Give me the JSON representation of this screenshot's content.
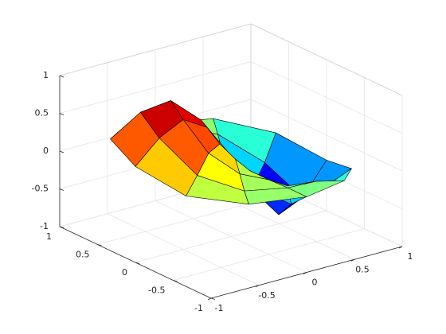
{
  "chart_data": {
    "type": "surface",
    "r": [
      0,
      0.25,
      0.5,
      0.75,
      1
    ],
    "theta": [
      0,
      30,
      60,
      90,
      120,
      150,
      180,
      210,
      240,
      270,
      300,
      330
    ],
    "z": [
      [
        0.07
      ],
      [
        -0.5,
        -0.37,
        -0.11,
        0.16,
        0.41,
        0.56,
        0.53,
        0.36,
        0.17,
        -0.01,
        -0.2,
        -0.41
      ],
      [
        -0.88,
        -0.59,
        -0.15,
        0.16,
        0.52,
        0.83,
        0.72,
        0.37,
        0.12,
        -0.01,
        -0.21,
        -0.6
      ],
      [
        -0.74,
        -0.42,
        -0.08,
        0.08,
        0.35,
        0.69,
        0.56,
        0.21,
        0.04,
        0,
        -0.09,
        -0.42
      ],
      [
        -0.33,
        -0.16,
        -0.02,
        0.02,
        0.14,
        0.35,
        0.27,
        0.07,
        0.01,
        0,
        -0.02,
        -0.16
      ]
    ],
    "xlim": [
      -1,
      1
    ],
    "ylim": [
      -1,
      1
    ],
    "zlim": [
      -1,
      1
    ],
    "xticks": [
      -1,
      -0.5,
      0,
      0.5,
      1
    ],
    "yticks": [
      -1,
      -0.5,
      0,
      0.5,
      1
    ],
    "zticks": [
      -1,
      -0.5,
      0,
      0.5,
      1
    ],
    "colormap": "jet",
    "edge_color": "#000000",
    "grid": true
  }
}
